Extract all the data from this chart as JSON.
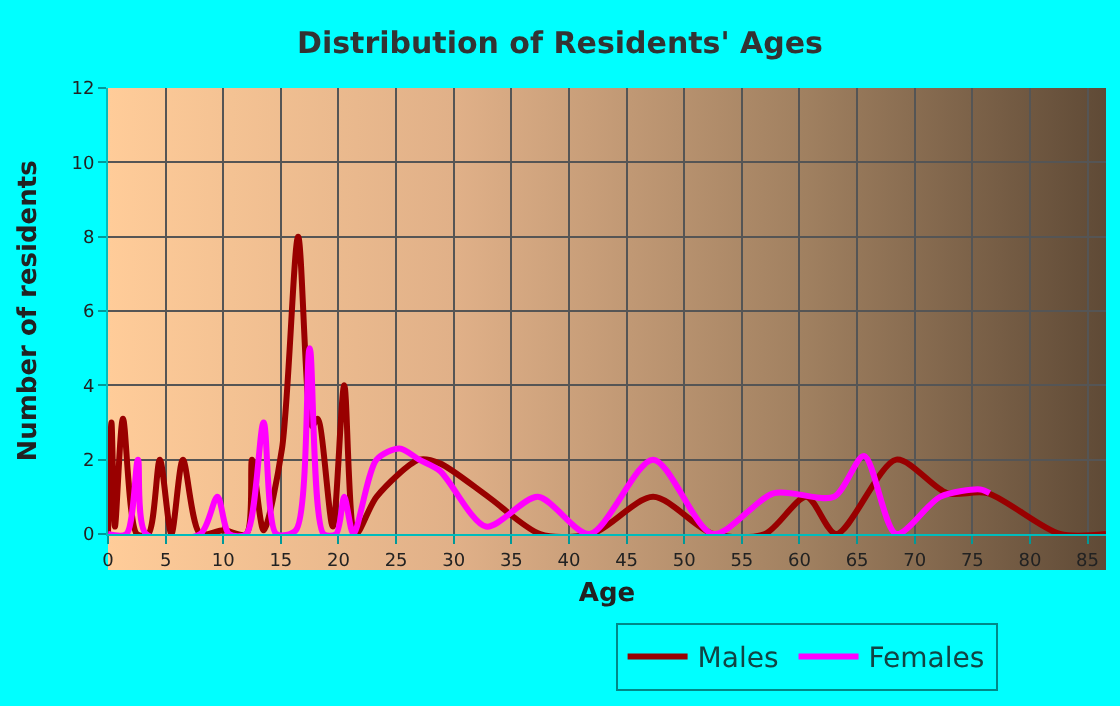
{
  "chart_data": {
    "type": "line",
    "title": "Distribution of Residents' Ages",
    "xlabel": "Age",
    "ylabel": "Number of residents",
    "xlim": [
      0,
      86.6
    ],
    "xticks": [
      0,
      5,
      10,
      15,
      20,
      25,
      30,
      35,
      40,
      45,
      50,
      55,
      60,
      65,
      70,
      75,
      80,
      85
    ],
    "ylim": [
      0,
      12
    ],
    "yticks": [
      0,
      2,
      4,
      6,
      8,
      10,
      12
    ],
    "grid": true,
    "legend": "bottom",
    "marker": "none",
    "line_style": "solid",
    "series": [
      {
        "name": "Males",
        "color": "#990000",
        "x": [
          0,
          0.3,
          0.6,
          1.3,
          2.5,
          3.5,
          4.5,
          5.5,
          6.5,
          8,
          10,
          12,
          12.5,
          13.5,
          15.1,
          16.5,
          17.7,
          18.2,
          19.5,
          20.5,
          21.5,
          23.3,
          27,
          28.8,
          33,
          37.5,
          42,
          47.3,
          52.5,
          57,
          60.6,
          63.2,
          68.4,
          72.8,
          76.3,
          82.6,
          86.6
        ],
        "values": [
          0,
          3,
          0.2,
          3.1,
          0,
          0,
          2,
          0,
          2,
          0,
          0.1,
          0,
          2,
          0.1,
          2.3,
          8,
          2.9,
          3.1,
          0.2,
          4,
          0,
          1,
          2,
          1.9,
          1,
          0,
          0,
          1,
          0,
          0,
          1,
          0,
          2,
          1.1,
          1.1,
          0,
          0
        ]
      },
      {
        "name": "Females",
        "color": "#ff00ff",
        "x": [
          0,
          1.6,
          2.6,
          3.3,
          8,
          9.5,
          10.5,
          12,
          13.5,
          14.6,
          16.3,
          17.5,
          18.7,
          19.8,
          20.5,
          21.3,
          23.3,
          25.3,
          27,
          28.8,
          32.8,
          37.3,
          41.8,
          47.3,
          52.5,
          57.8,
          63,
          65.6,
          68.4,
          72.2,
          75.7,
          76.5
        ],
        "values": [
          0,
          0,
          2,
          0,
          0,
          1,
          0,
          0,
          3,
          0,
          0.1,
          5,
          0,
          0,
          1,
          0,
          2,
          2.3,
          2,
          1.7,
          0.2,
          1,
          0,
          2,
          0,
          1.1,
          1,
          2.1,
          0,
          1,
          1.2,
          1.1
        ]
      }
    ]
  }
}
